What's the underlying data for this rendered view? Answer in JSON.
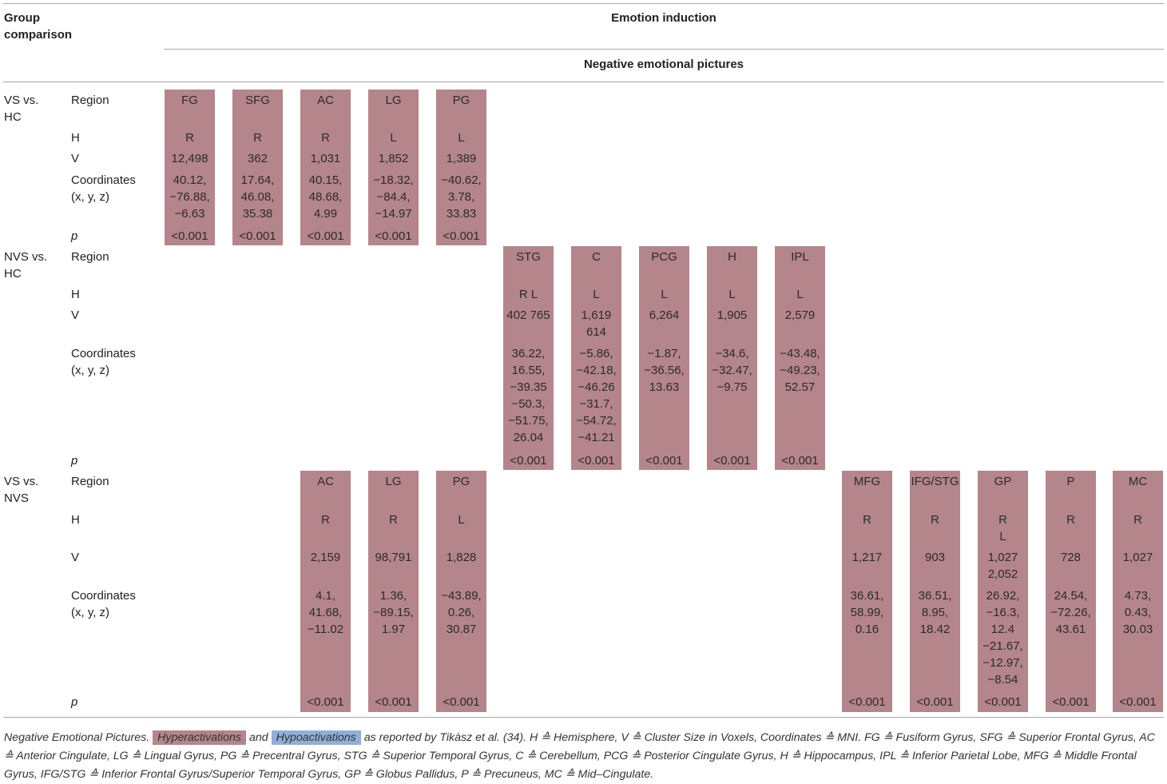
{
  "header": {
    "group_comparison": "Group\ncomparison",
    "emotion_induction": "Emotion induction",
    "negative_pictures": "Negative emotional pictures"
  },
  "row_labels": {
    "region": "Region",
    "h": "H",
    "v": "V",
    "coordinates": "Coordinates\n(x, y, z)",
    "p": "p"
  },
  "groups": [
    {
      "name": "VS vs.\nHC",
      "cells": [
        {
          "region": "FG",
          "h": "R",
          "v": "12,498",
          "coords": "40.12,\n−76.88,\n−6.63",
          "p": "<0.001"
        },
        {
          "region": "SFG",
          "h": "R",
          "v": "362",
          "coords": "17.64,\n46.08,\n35.38",
          "p": "<0.001"
        },
        {
          "region": "AC",
          "h": "R",
          "v": "1,031",
          "coords": "40.15,\n48.68,\n4.99",
          "p": "<0.001"
        },
        {
          "region": "LG",
          "h": "L",
          "v": "1,852",
          "coords": "−18.32,\n−84.4,\n−14.97",
          "p": "<0.001"
        },
        {
          "region": "PG",
          "h": "L",
          "v": "1,389",
          "coords": "−40.62,\n3.78,\n33.83",
          "p": "<0.001"
        }
      ]
    },
    {
      "name": "NVS vs.\nHC",
      "cells": [
        {
          "region": "STG",
          "h": "R L",
          "v": "402 765",
          "coords": "36.22,\n16.55,\n−39.35\n−50.3,\n−51.75,\n26.04",
          "p": "<0.001"
        },
        {
          "region": "C",
          "h": "L",
          "v": "1,619\n614",
          "coords": "−5.86,\n−42.18,\n−46.26\n−31.7,\n−54.72,\n−41.21",
          "p": "<0.001"
        },
        {
          "region": "PCG",
          "h": "L",
          "v": "6,264",
          "coords": "−1.87,\n−36.56,\n13.63",
          "p": "<0.001"
        },
        {
          "region": "H",
          "h": "L",
          "v": "1,905",
          "coords": "−34.6,\n−32.47,\n−9.75",
          "p": "<0.001"
        },
        {
          "region": "IPL",
          "h": "L",
          "v": "2,579",
          "coords": "−43.48,\n−49.23,\n52.57",
          "p": "<0.001"
        }
      ]
    },
    {
      "name": "VS vs.\nNVS",
      "cells": [
        {
          "region": "AC",
          "h": "R",
          "v": "2,159",
          "coords": "4.1,\n41.68,\n−11.02",
          "p": "<0.001"
        },
        {
          "region": "LG",
          "h": "R",
          "v": "98,791",
          "coords": "1.36,\n−89.15,\n1.97",
          "p": "<0.001"
        },
        {
          "region": "PG",
          "h": "L",
          "v": "1,828",
          "coords": "−43.89,\n0.26,\n30.87",
          "p": "<0.001"
        },
        {
          "region": "MFG",
          "h": "R",
          "v": "1,217",
          "coords": "36.61,\n58.99,\n0.16",
          "p": "<0.001"
        },
        {
          "region": "IFG/STG",
          "h": "R",
          "v": "903",
          "coords": "36.51,\n8.95,\n18.42",
          "p": "<0.001"
        },
        {
          "region": "GP",
          "h": "R\nL",
          "v": "1,027\n2,052",
          "coords": "26.92,\n−16.3,\n12.4\n−21.67,\n−12.97,\n−8.54",
          "p": "<0.001"
        },
        {
          "region": "P",
          "h": "R",
          "v": "728",
          "coords": "24.54,\n−72.26,\n43.61",
          "p": "<0.001"
        },
        {
          "region": "MC",
          "h": "R",
          "v": "1,027",
          "coords": "4.73,\n0.43,\n30.03",
          "p": "<0.001"
        }
      ]
    }
  ],
  "footnote": {
    "part1": "Negative Emotional Pictures.",
    "hyper": "Hyperactivations",
    "and": "and",
    "hypo": "Hypoactivations",
    "part2": "as reported by Tikàsz et al. (34). H ≙ Hemisphere, V ≙ Cluster Size in Voxels, Coordinates ≙ MNI. FG ≙ Fusiform Gyrus, SFG ≙ Superior Frontal Gyrus, AC ≙ Anterior Cingulate, LG ≙ Lingual Gyrus, PG ≙ Precentral Gyrus, STG ≙ Superior Temporal Gyrus, C ≙ Cerebellum, PCG ≙ Posterior Cingulate Gyrus, H ≙ Hippocampus, IPL ≙ Inferior Parietal Lobe, MFG ≙ Middle Frontal Gyrus, IFG/STG ≙ Inferior Frontal Gyrus/Superior Temporal Gyrus, GP ≙ Globus Pallidus, P ≙ Precuneus, MC ≙ Mid–Cingulate."
  },
  "colors": {
    "hyperactivation": "#b4858b",
    "hypoactivation": "#90afd8",
    "rule": "#a9a9a9"
  }
}
